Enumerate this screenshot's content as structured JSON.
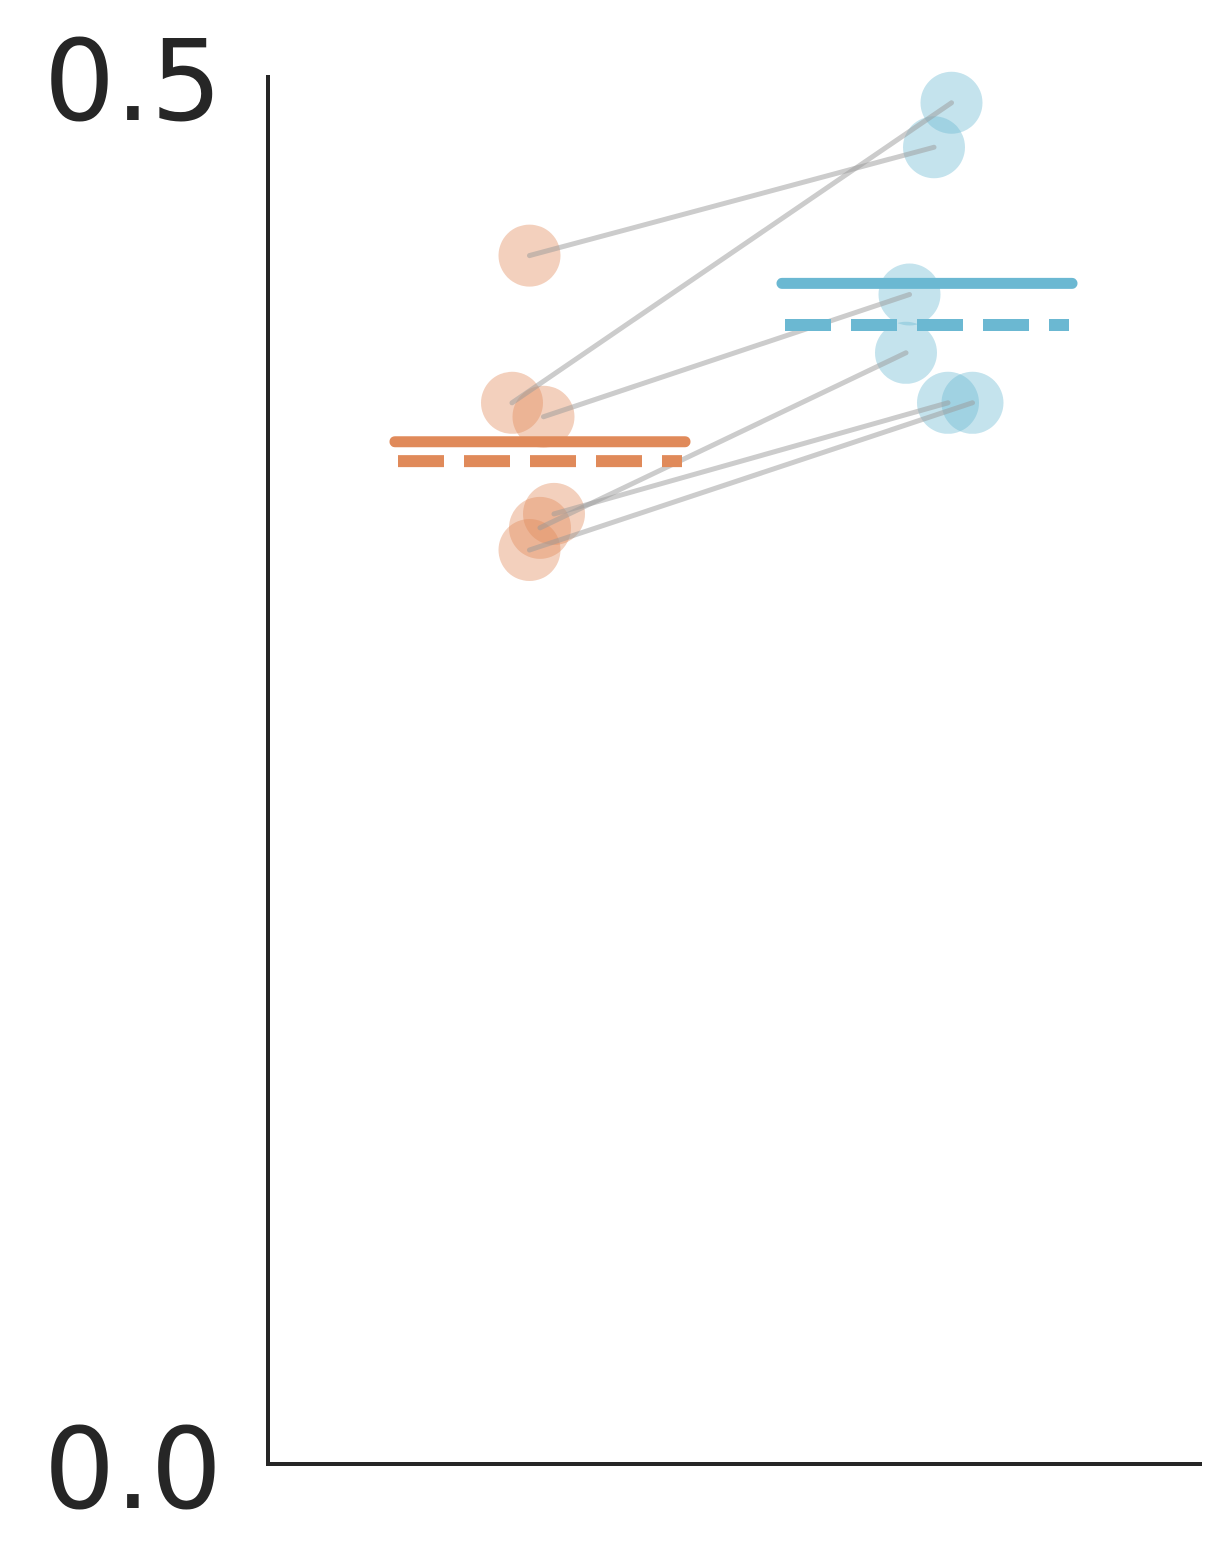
{
  "chart_data": {
    "type": "scatter",
    "title": "",
    "xlabel": "",
    "ylabel": "",
    "ylim": [
      0,
      0.5
    ],
    "yticks": [
      "0.0",
      "0.5"
    ],
    "grid": false,
    "legend": "none",
    "colors": {
      "condition_1": "#e08a5a",
      "condition_2": "#6bb8d2",
      "pair_line": "#9a9a9a",
      "axis": "#262626"
    },
    "groups": [
      {
        "key": "condition_1",
        "mean": 0.368,
        "median": 0.361,
        "points": [
          {
            "jitter": -0.03,
            "y": 0.435
          },
          {
            "jitter": -0.08,
            "y": 0.382
          },
          {
            "jitter": 0.01,
            "y": 0.377
          },
          {
            "jitter": 0.04,
            "y": 0.342
          },
          {
            "jitter": 0.0,
            "y": 0.337
          },
          {
            "jitter": -0.03,
            "y": 0.329
          }
        ]
      },
      {
        "key": "condition_2",
        "mean": 0.425,
        "median": 0.41,
        "points": [
          {
            "jitter": 0.02,
            "y": 0.474
          },
          {
            "jitter": 0.07,
            "y": 0.49
          },
          {
            "jitter": -0.05,
            "y": 0.421
          },
          {
            "jitter": 0.06,
            "y": 0.382
          },
          {
            "jitter": -0.06,
            "y": 0.4
          },
          {
            "jitter": 0.13,
            "y": 0.382
          }
        ]
      }
    ]
  }
}
